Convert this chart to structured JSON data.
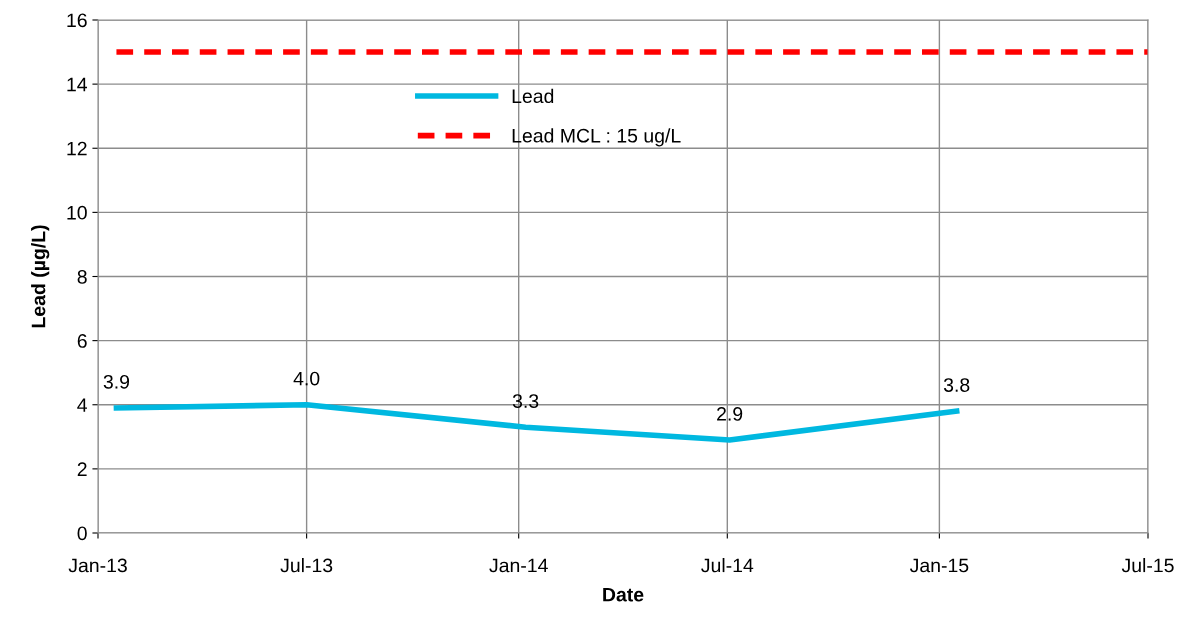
{
  "chart_data": {
    "type": "line",
    "xlabel": "Date",
    "ylabel": "Lead (µg/L)",
    "ylim": [
      0,
      16
    ],
    "yticks": [
      0,
      2,
      4,
      6,
      8,
      10,
      12,
      14,
      16
    ],
    "xlim": [
      "2013-01-01",
      "2015-07-01"
    ],
    "xticks": [
      {
        "value": "2013-01-01",
        "label": "Jan-13"
      },
      {
        "value": "2013-07-01",
        "label": "Jul-13"
      },
      {
        "value": "2014-01-01",
        "label": "Jan-14"
      },
      {
        "value": "2014-07-01",
        "label": "Jul-14"
      },
      {
        "value": "2015-01-01",
        "label": "Jan-15"
      },
      {
        "value": "2015-07-01",
        "label": "Jul-15"
      }
    ],
    "grid": true,
    "legend": "top",
    "marker": "none",
    "series": [
      {
        "name": "Lead",
        "color": "#00b8e0",
        "line_style": "solid",
        "x": [
          "2013-01-17",
          "2013-07-01",
          "2014-01-07",
          "2014-07-03",
          "2015-01-16"
        ],
        "values": [
          3.9,
          4.0,
          3.3,
          2.9,
          3.8
        ],
        "value_labels": [
          "3.9",
          "4.0",
          "3.3",
          "2.9",
          "3.8"
        ]
      },
      {
        "name": "Lead MCL : 15 ug/L",
        "color": "#ff0000",
        "line_style": "dashed",
        "x": [
          "2013-01-17",
          "2015-07-01"
        ],
        "values": [
          15,
          15
        ]
      }
    ]
  }
}
